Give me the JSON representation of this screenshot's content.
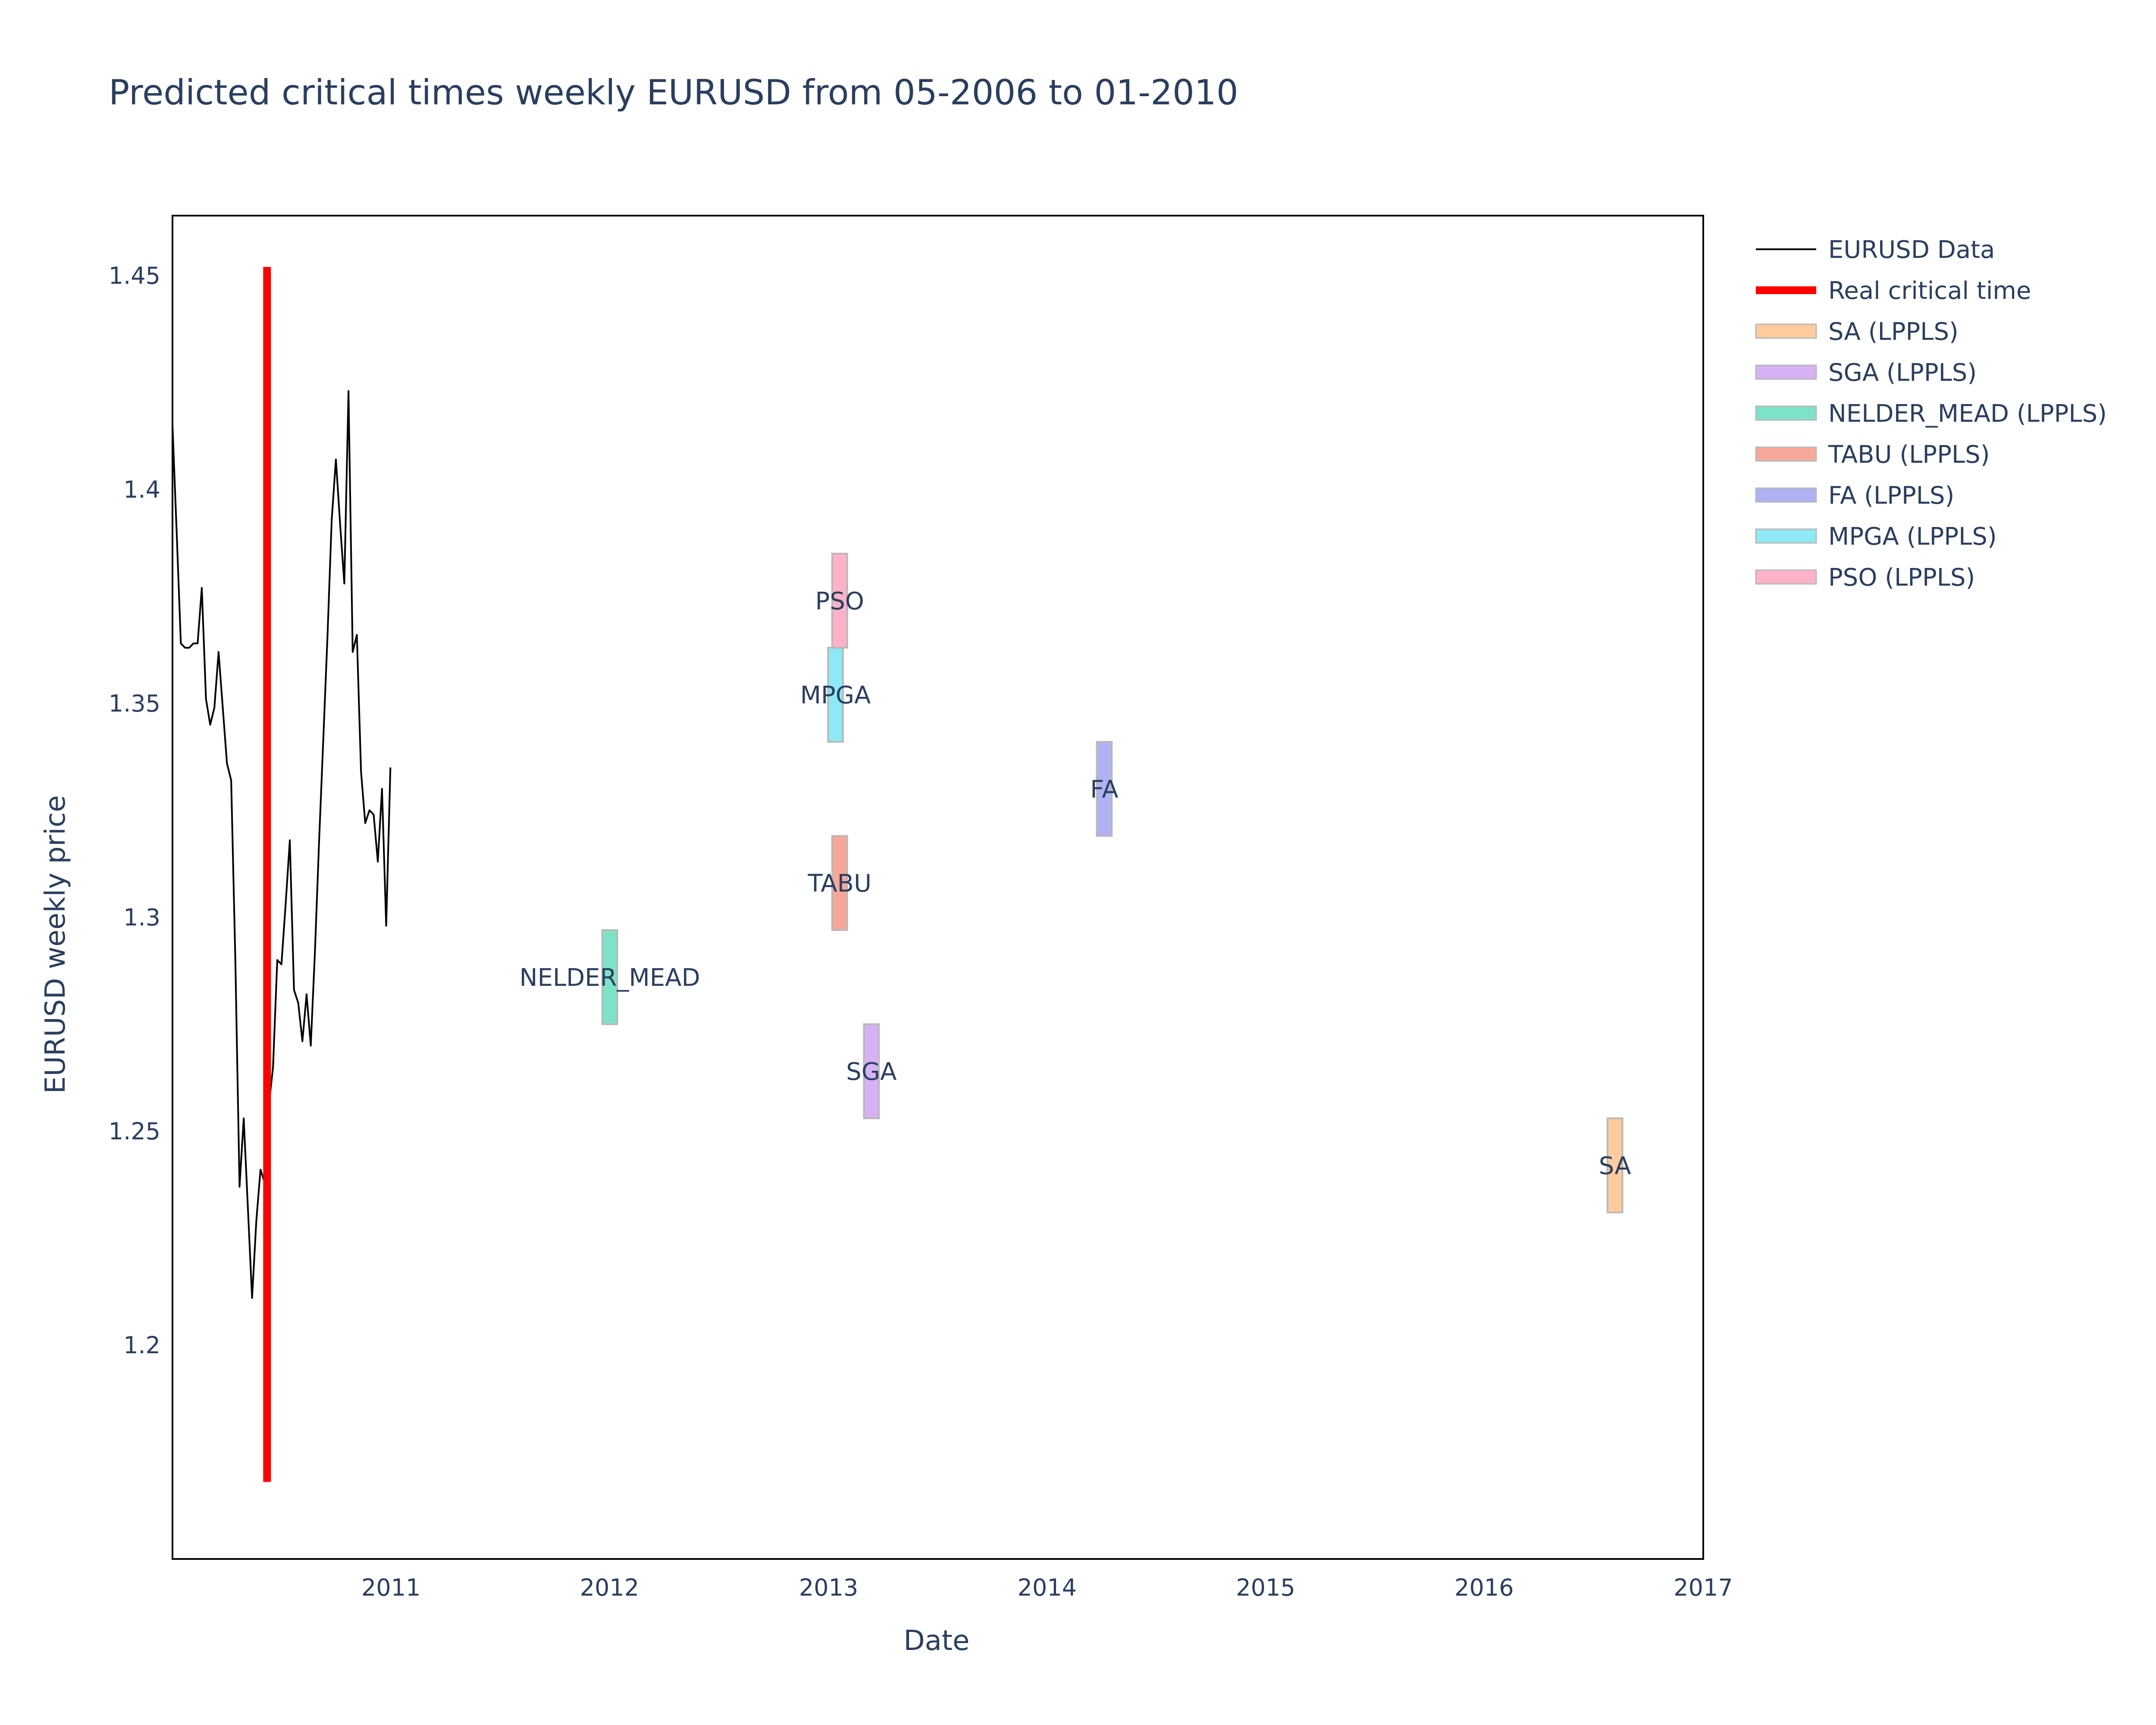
{
  "chart_data": {
    "type": "line",
    "title": "Predicted critical times weekly EURUSD from 05-2006 to 01-2010",
    "xlabel": "Date",
    "ylabel": "EURUSD weekly price",
    "xlim": [
      "2010-01-01",
      "2017-01-01"
    ],
    "ylim": [
      1.15,
      1.464
    ],
    "x_ticks": [
      "2011",
      "2012",
      "2013",
      "2014",
      "2015",
      "2016",
      "2017"
    ],
    "y_ticks": [
      "1.2",
      "1.25",
      "1.3",
      "1.35",
      "1.4",
      "1.45"
    ],
    "grid": false,
    "legend_position": "right",
    "series": [
      {
        "name": "EURUSD Data",
        "type": "line",
        "color": "#000000",
        "points": [
          [
            "2010-01-01",
            1.415
          ],
          [
            "2010-01-08",
            1.39
          ],
          [
            "2010-01-15",
            1.364
          ],
          [
            "2010-01-22",
            1.363
          ],
          [
            "2010-01-29",
            1.363
          ],
          [
            "2010-02-05",
            1.364
          ],
          [
            "2010-02-12",
            1.364
          ],
          [
            "2010-02-19",
            1.377
          ],
          [
            "2010-02-26",
            1.351
          ],
          [
            "2010-03-05",
            1.345
          ],
          [
            "2010-03-12",
            1.349
          ],
          [
            "2010-03-19",
            1.362
          ],
          [
            "2010-03-26",
            1.349
          ],
          [
            "2010-04-02",
            1.336
          ],
          [
            "2010-04-09",
            1.332
          ],
          [
            "2010-04-16",
            1.29
          ],
          [
            "2010-04-23",
            1.237
          ],
          [
            "2010-04-30",
            1.253
          ],
          [
            "2010-05-07",
            1.232
          ],
          [
            "2010-05-14",
            1.211
          ],
          [
            "2010-05-21",
            1.229
          ],
          [
            "2010-05-28",
            1.241
          ],
          [
            "2010-06-04",
            1.238
          ],
          [
            "2010-06-11",
            1.256
          ],
          [
            "2010-06-18",
            1.265
          ],
          [
            "2010-06-25",
            1.29
          ],
          [
            "2010-07-02",
            1.289
          ],
          [
            "2010-07-09",
            1.303
          ],
          [
            "2010-07-16",
            1.318
          ],
          [
            "2010-07-23",
            1.283
          ],
          [
            "2010-07-30",
            1.28
          ],
          [
            "2010-08-06",
            1.271
          ],
          [
            "2010-08-13",
            1.282
          ],
          [
            "2010-08-20",
            1.27
          ],
          [
            "2010-08-27",
            1.292
          ],
          [
            "2010-09-03",
            1.318
          ],
          [
            "2010-09-10",
            1.342
          ],
          [
            "2010-09-17",
            1.366
          ],
          [
            "2010-09-24",
            1.393
          ],
          [
            "2010-10-01",
            1.407
          ],
          [
            "2010-10-08",
            1.392
          ],
          [
            "2010-10-15",
            1.378
          ],
          [
            "2010-10-22",
            1.423
          ],
          [
            "2010-10-29",
            1.362
          ],
          [
            "2010-11-05",
            1.366
          ],
          [
            "2010-11-12",
            1.334
          ],
          [
            "2010-11-19",
            1.322
          ],
          [
            "2010-11-26",
            1.325
          ],
          [
            "2010-12-03",
            1.324
          ],
          [
            "2010-12-10",
            1.313
          ],
          [
            "2010-12-17",
            1.33
          ],
          [
            "2010-12-24",
            1.298
          ],
          [
            "2010-12-31",
            1.335
          ]
        ]
      },
      {
        "name": "Real critical time",
        "type": "vline",
        "color": "#ff0000",
        "x": "2010-06-08",
        "y_range": [
          1.168,
          1.452
        ]
      },
      {
        "name": "SA (LPPLS)",
        "type": "box",
        "label": "SA",
        "color": "#fecb9e",
        "x_range": [
          "2016-07-25",
          "2016-08-19"
        ],
        "y_range": [
          1.231,
          1.253
        ]
      },
      {
        "name": "SGA (LPPLS)",
        "type": "box",
        "label": "SGA",
        "color": "#d6b2f5",
        "x_range": [
          "2013-03-01",
          "2013-03-26"
        ],
        "y_range": [
          1.253,
          1.275
        ]
      },
      {
        "name": "NELDER_MEAD (LPPLS)",
        "type": "box",
        "label": "NELDER_MEAD",
        "color": "#7de3c8",
        "x_range": [
          "2011-12-20",
          "2012-01-14"
        ],
        "y_range": [
          1.275,
          1.297
        ]
      },
      {
        "name": "TABU (LPPLS)",
        "type": "box",
        "label": "TABU",
        "color": "#f7a79a",
        "x_range": [
          "2013-01-07",
          "2013-02-01"
        ],
        "y_range": [
          1.297,
          1.319
        ]
      },
      {
        "name": "FA (LPPLS)",
        "type": "box",
        "label": "FA",
        "color": "#aeb2f5",
        "x_range": [
          "2014-03-25",
          "2014-04-19"
        ],
        "y_range": [
          1.319,
          1.341
        ]
      },
      {
        "name": "MPGA (LPPLS)",
        "type": "box",
        "label": "MPGA",
        "color": "#8fe8f5",
        "x_range": [
          "2012-12-31",
          "2013-01-25"
        ],
        "y_range": [
          1.341,
          1.363
        ]
      },
      {
        "name": "PSO (LPPLS)",
        "type": "box",
        "label": "PSO",
        "color": "#fdb2c7",
        "x_range": [
          "2013-01-07",
          "2013-02-01"
        ],
        "y_range": [
          1.363,
          1.385
        ]
      }
    ]
  }
}
